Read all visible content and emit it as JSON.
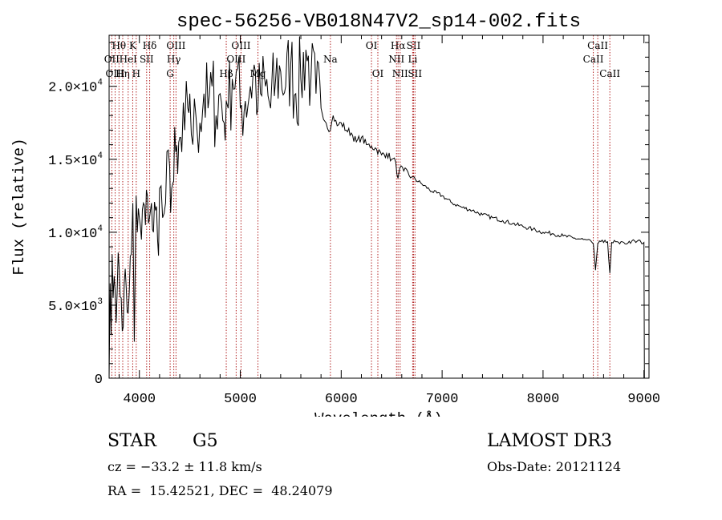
{
  "chart_data": {
    "type": "line",
    "title": "spec-56256-VB018N47V2_sp14-002.fits",
    "xlabel": "Wavelength (Å)",
    "ylabel": "Flux (relative)",
    "xlim": [
      3700,
      9050
    ],
    "ylim": [
      0,
      23500
    ],
    "x_ticks": [
      {
        "value": 4000,
        "label": "4000"
      },
      {
        "value": 5000,
        "label": "5000"
      },
      {
        "value": 6000,
        "label": "6000"
      },
      {
        "value": 7000,
        "label": "7000"
      },
      {
        "value": 8000,
        "label": "8000"
      },
      {
        "value": 9000,
        "label": "9000"
      }
    ],
    "y_ticks": [
      {
        "value": 0,
        "mant": "0",
        "exp": ""
      },
      {
        "value": 5000,
        "mant": "5.0×10",
        "exp": "3"
      },
      {
        "value": 10000,
        "mant": "1.0×10",
        "exp": "4"
      },
      {
        "value": 15000,
        "mant": "1.5×10",
        "exp": "4"
      },
      {
        "value": 20000,
        "mant": "2.0×10",
        "exp": "4"
      }
    ],
    "series": [
      {
        "name": "spectrum",
        "color": "#000000",
        "x": [
          3700,
          3710,
          3720,
          3730,
          3740,
          3750,
          3760,
          3780,
          3800,
          3820,
          3840,
          3860,
          3880,
          3900,
          3920,
          3935,
          3950,
          3968,
          3980,
          4000,
          4020,
          4040,
          4060,
          4080,
          4101,
          4120,
          4140,
          4160,
          4180,
          4200,
          4230,
          4260,
          4300,
          4320,
          4340,
          4360,
          4380,
          4400,
          4420,
          4450,
          4480,
          4500,
          4530,
          4560,
          4600,
          4640,
          4680,
          4720,
          4760,
          4800,
          4840,
          4861,
          4880,
          4920,
          4960,
          5000,
          5050,
          5100,
          5150,
          5175,
          5200,
          5250,
          5300,
          5350,
          5400,
          5450,
          5500,
          5550,
          5600,
          5650,
          5700,
          5750,
          5800,
          5850,
          5893,
          5920,
          5960,
          6000,
          6050,
          6100,
          6150,
          6200,
          6250,
          6300,
          6350,
          6400,
          6450,
          6500,
          6540,
          6563,
          6580,
          6620,
          6700,
          6800,
          6900,
          7000,
          7100,
          7200,
          7300,
          7400,
          7500,
          7600,
          7700,
          7800,
          7900,
          8000,
          8100,
          8200,
          8300,
          8400,
          8480,
          8498,
          8520,
          8542,
          8560,
          8600,
          8640,
          8662,
          8680,
          8720,
          8760,
          8800,
          8840,
          8880,
          8920,
          8960,
          8980,
          9000,
          9005
        ],
        "y": [
          0,
          6500,
          3000,
          8500,
          5500,
          7000,
          6000,
          6000,
          7500,
          5500,
          3500,
          7500,
          4500,
          6000,
          8500,
          12000,
          2500,
          12500,
          10000,
          11000,
          9500,
          12000,
          10500,
          12500,
          11000,
          12000,
          10000,
          11500,
          9500,
          13000,
          11000,
          12000,
          14500,
          13000,
          13500,
          15500,
          14000,
          16500,
          15500,
          17000,
          18500,
          19500,
          16000,
          18000,
          17500,
          19500,
          18500,
          20000,
          18000,
          19500,
          17500,
          19000,
          18500,
          20500,
          21000,
          18500,
          19000,
          20000,
          21000,
          18500,
          19500,
          20000,
          18500,
          20500,
          21000,
          20000,
          21500,
          19500,
          20500,
          22500,
          20500,
          19500,
          18500,
          17500,
          17000,
          18000,
          17300,
          17500,
          17000,
          16800,
          16200,
          16500,
          16000,
          15900,
          15700,
          15300,
          15400,
          15000,
          14800,
          13700,
          14400,
          14200,
          13800,
          13300,
          12800,
          12500,
          12000,
          11700,
          11500,
          11200,
          11000,
          10800,
          10600,
          10400,
          10200,
          10000,
          9900,
          9750,
          9600,
          9500,
          9350,
          9200,
          7400,
          9200,
          9400,
          9300,
          9350,
          7200,
          9300,
          9350,
          9200,
          9300,
          9250,
          9400,
          9300,
          9450,
          9200,
          9300,
          0
        ]
      }
    ],
    "line_markers": [
      {
        "label": "Hθ",
        "x": 3798,
        "row": 1
      },
      {
        "label": "OII",
        "x": 3727,
        "row": 2
      },
      {
        "label": "OIII",
        "x": 3760,
        "row": 3
      },
      {
        "label": "Hη",
        "x": 3835,
        "row": 3
      },
      {
        "label": "HeI",
        "x": 3889,
        "row": 2
      },
      {
        "label": "K",
        "x": 3934,
        "row": 1
      },
      {
        "label": "H",
        "x": 3969,
        "row": 3
      },
      {
        "label": "SII",
        "x": 4072,
        "row": 2
      },
      {
        "label": "Hδ",
        "x": 4102,
        "row": 1
      },
      {
        "label": "OIII",
        "x": 4363,
        "row": 1
      },
      {
        "label": "Hγ",
        "x": 4341,
        "row": 2
      },
      {
        "label": "G",
        "x": 4305,
        "row": 3
      },
      {
        "label": "Hβ",
        "x": 4861,
        "row": 3
      },
      {
        "label": "OIII",
        "x": 5007,
        "row": 1
      },
      {
        "label": "OIII",
        "x": 4959,
        "row": 2
      },
      {
        "label": "Mg",
        "x": 5175,
        "row": 3
      },
      {
        "label": "Na",
        "x": 5893,
        "row": 2
      },
      {
        "label": "OI",
        "x": 6300,
        "row": 1
      },
      {
        "label": "OI",
        "x": 6363,
        "row": 3
      },
      {
        "label": "Hα",
        "x": 6563,
        "row": 1
      },
      {
        "label": "NII",
        "x": 6548,
        "row": 2
      },
      {
        "label": "NII",
        "x": 6584,
        "row": 3
      },
      {
        "label": "SII",
        "x": 6717,
        "row": 1
      },
      {
        "label": "Li",
        "x": 6708,
        "row": 2
      },
      {
        "label": "SII",
        "x": 6731,
        "row": 3
      },
      {
        "label": "CaII",
        "x": 8542,
        "row": 1
      },
      {
        "label": "CaII",
        "x": 8498,
        "row": 2
      },
      {
        "label": "CaII",
        "x": 8662,
        "row": 3
      }
    ],
    "marker_color": "#b22222",
    "grid": false,
    "legend": "none"
  },
  "info": {
    "class_label": "STAR",
    "subclass": "G5",
    "cz": "cz = −33.2 ± 11.8 km/s",
    "coords": "RA =  15.42521, DEC =  48.24079",
    "survey": "LAMOST DR3",
    "obs_date": "Obs-Date: 20121124"
  }
}
